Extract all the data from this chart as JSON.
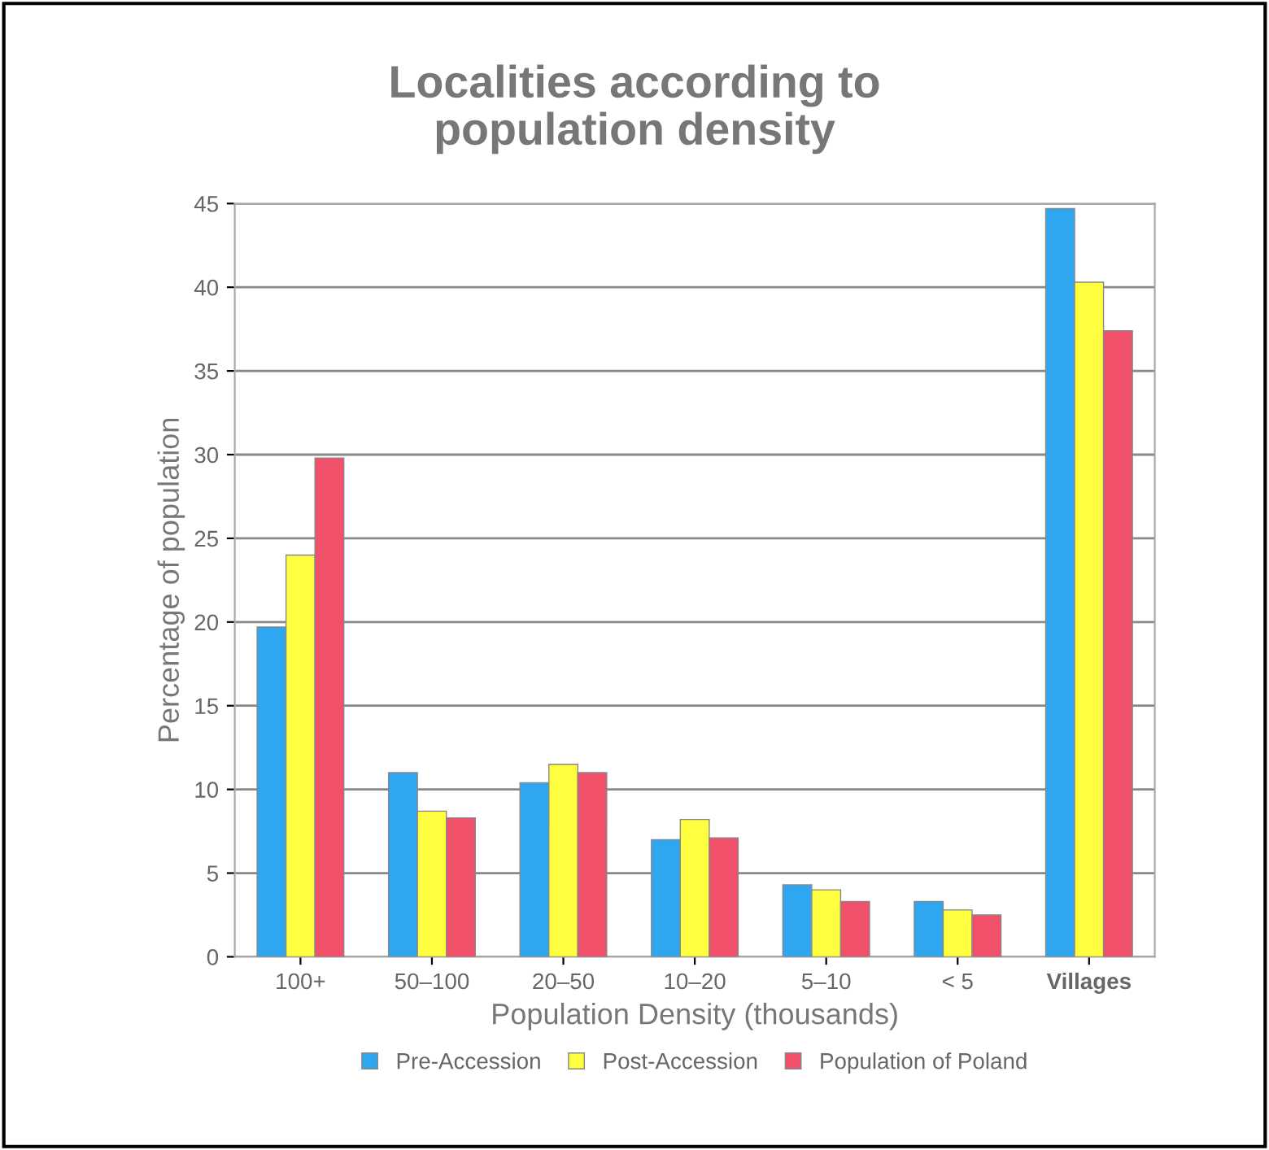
{
  "chart_data": {
    "type": "bar",
    "title": "Localities according to\npopulation density",
    "categories": [
      "100+",
      "50–100",
      "20–50",
      "10–20",
      "5–10",
      "< 5",
      "Villages"
    ],
    "series": [
      {
        "name": "Pre-Accession",
        "color": "#2ea6f0",
        "values": [
          19.7,
          11.0,
          10.4,
          7.0,
          4.3,
          3.3,
          44.7
        ]
      },
      {
        "name": "Post-Accession",
        "color": "#ffff40",
        "values": [
          24.0,
          8.7,
          11.5,
          8.2,
          4.0,
          2.8,
          40.3
        ]
      },
      {
        "name": "Population of Poland",
        "color": "#f0506a",
        "values": [
          29.8,
          8.3,
          11.0,
          7.1,
          3.3,
          2.5,
          37.4
        ]
      }
    ],
    "xlabel": "Population Density (thousands)",
    "ylabel": "Percentage of population",
    "ylim": [
      0,
      45
    ],
    "yticks": [
      0,
      5,
      10,
      15,
      20,
      25,
      30,
      35,
      40,
      45
    ],
    "grid": "y",
    "legend": "bottom"
  }
}
